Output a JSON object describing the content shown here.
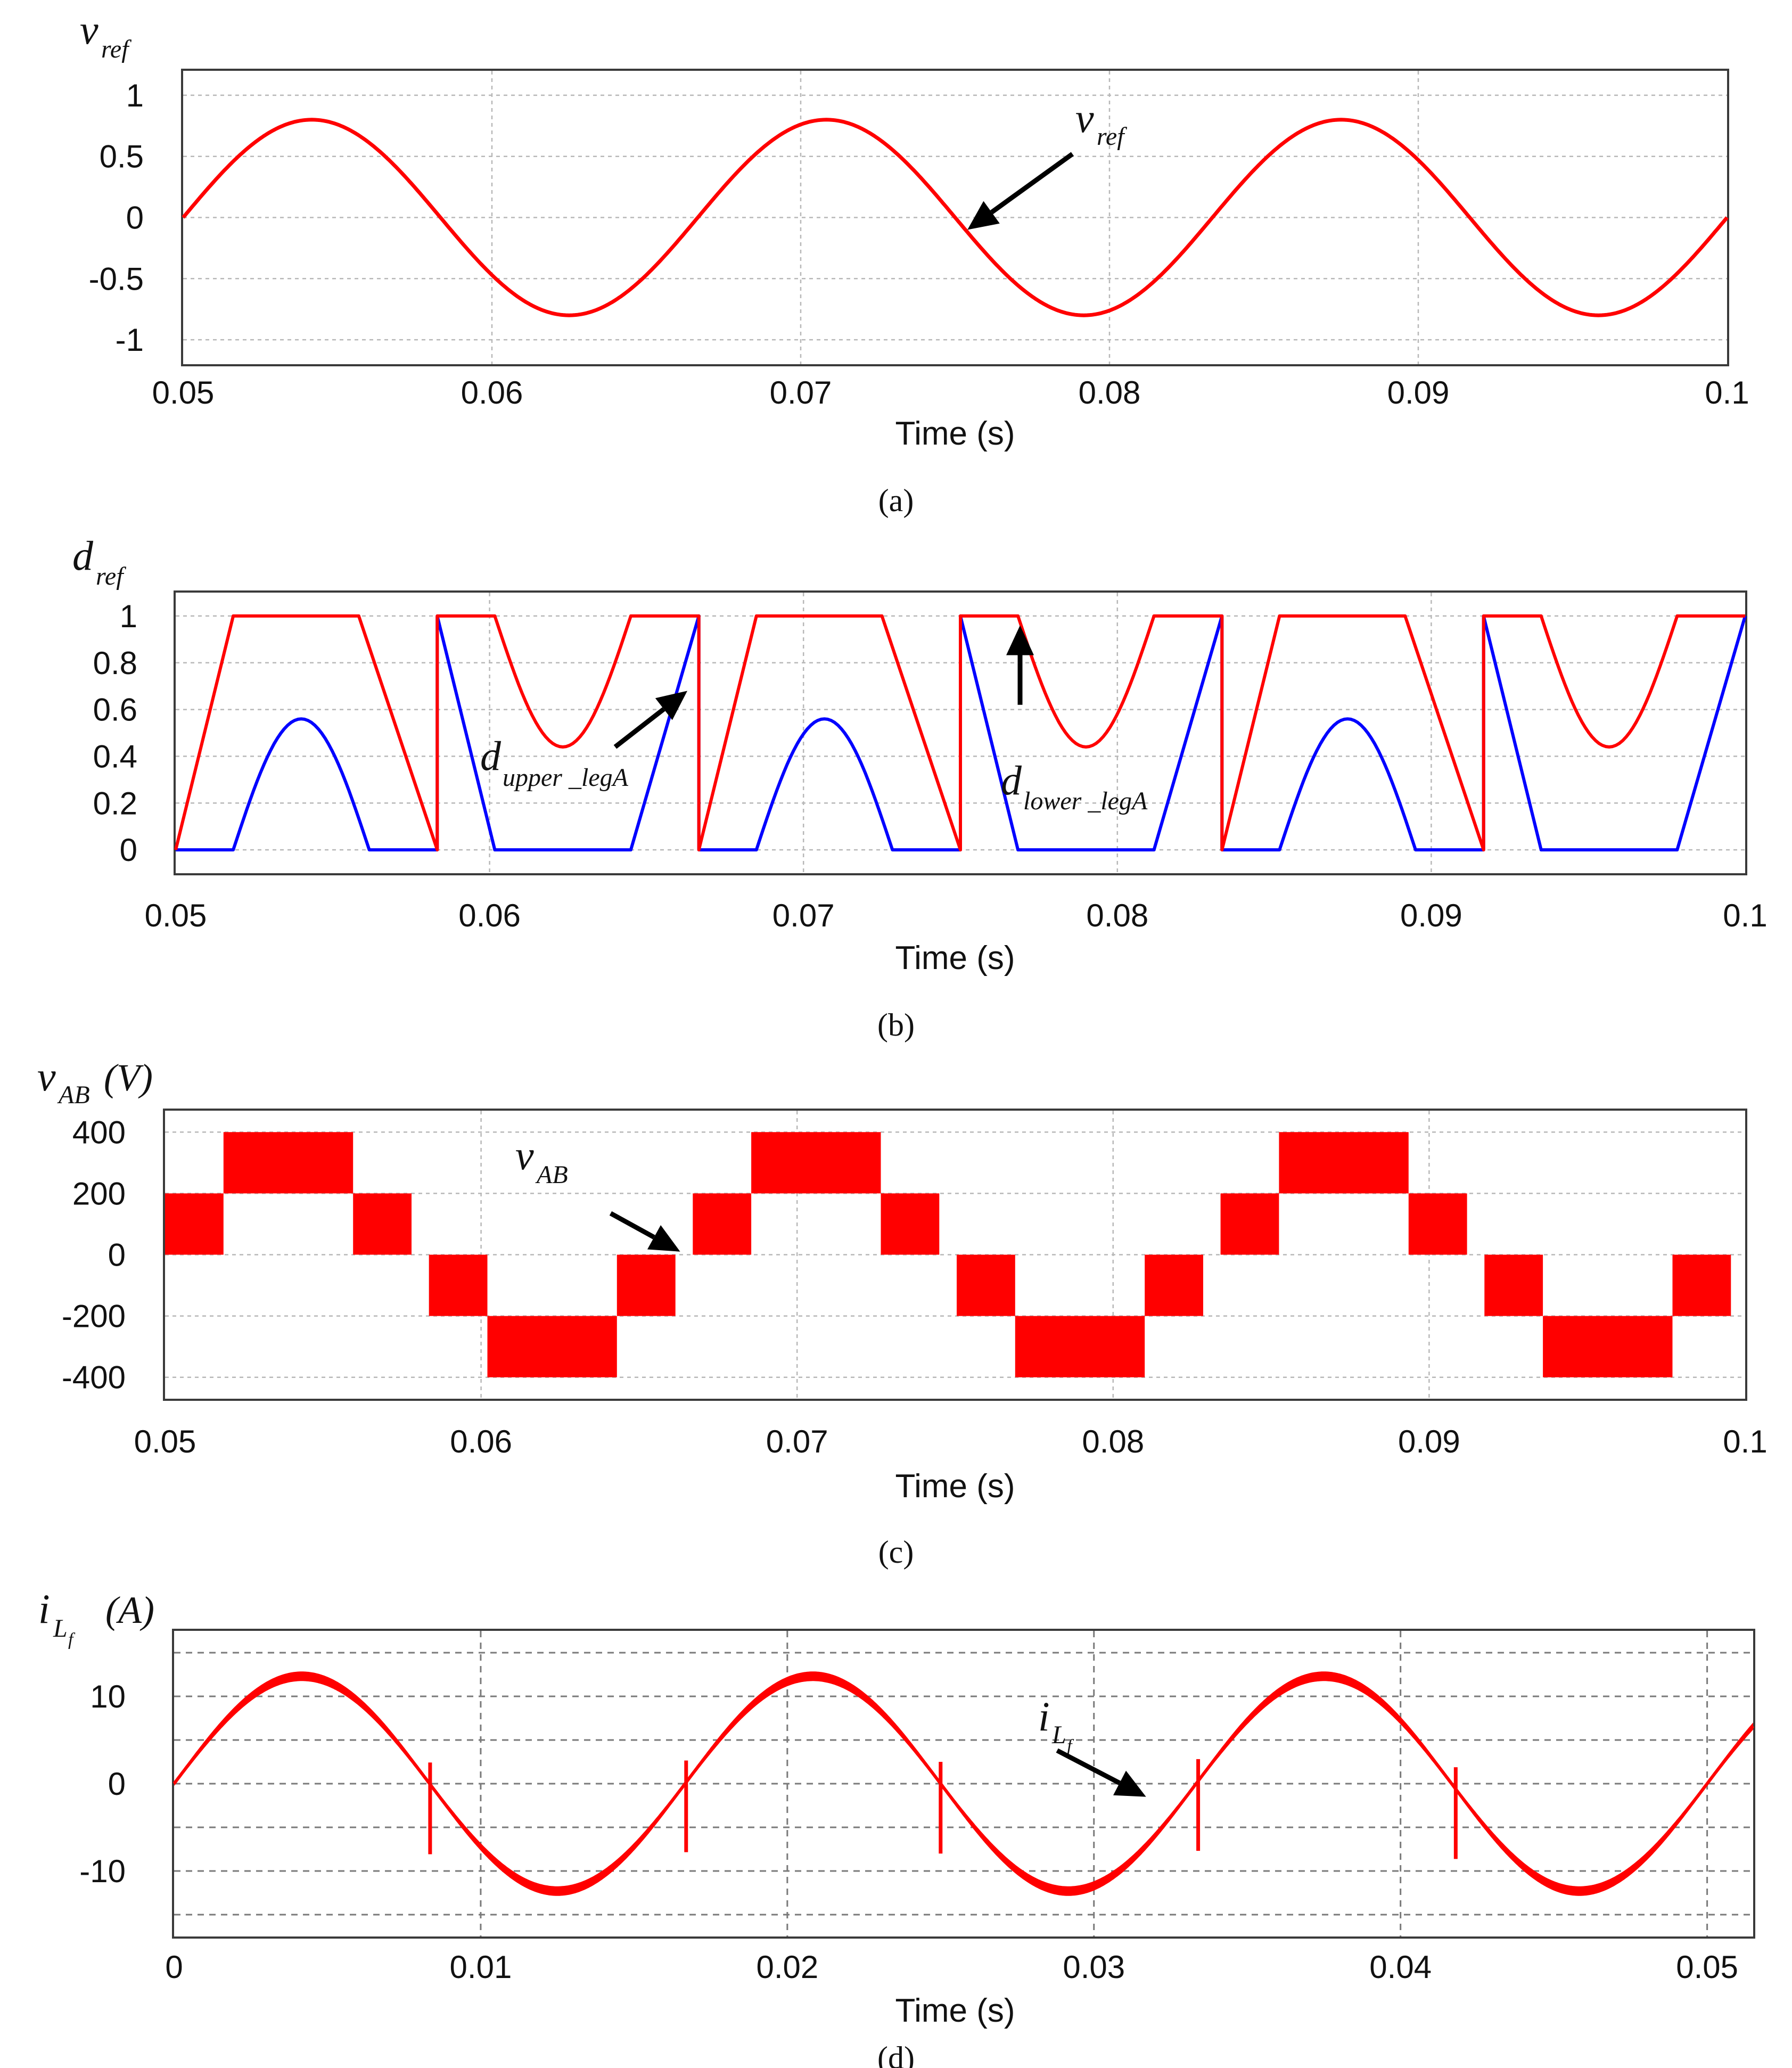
{
  "colors": {
    "red": "#ff0000",
    "blue": "#0000ff"
  },
  "chart_data": [
    {
      "id": "a",
      "type": "line",
      "panel_label": "(a)",
      "ylabel": {
        "main": "v",
        "sub": "ref"
      },
      "xlabel": "Time (s)",
      "xlim": [
        0.05,
        0.1
      ],
      "ylim": [
        -1.2,
        1.2
      ],
      "xticks": [
        0.05,
        0.06,
        0.07,
        0.08,
        0.09,
        0.1
      ],
      "xtick_labels": [
        "0.05",
        "0.06",
        "0.07",
        "0.08",
        "0.09",
        "0.1"
      ],
      "yticks": [
        1,
        0.5,
        0,
        -0.5,
        -1
      ],
      "ytick_labels": [
        "1",
        "0.5",
        "0",
        "-0.5",
        "-1"
      ],
      "series": [
        {
          "name": "v_ref",
          "color": "red",
          "amplitude": 0.8,
          "frequency_hz": 60,
          "start_value": 0
        }
      ],
      "annotation": {
        "main": "v",
        "sub": "ref",
        "arrow_tip": [
          0.0754,
          -0.1
        ],
        "arrow_tail": [
          0.0788,
          0.52
        ]
      }
    },
    {
      "id": "b",
      "type": "line",
      "panel_label": "(b)",
      "ylabel": {
        "main": "d",
        "sub": "ref"
      },
      "xlabel": "Time (s)",
      "xlim": [
        0.05,
        0.1
      ],
      "ylim": [
        -0.1,
        1.1
      ],
      "xticks": [
        0.05,
        0.06,
        0.07,
        0.08,
        0.09,
        0.1
      ],
      "xtick_labels": [
        "0.05",
        "0.06",
        "0.07",
        "0.08",
        "0.09",
        "0.1"
      ],
      "yticks": [
        1,
        0.8,
        0.6,
        0.4,
        0.2,
        0
      ],
      "ytick_labels": [
        "1",
        "0.8",
        "0.6",
        "0.4",
        "0.2",
        "0"
      ],
      "series": [
        {
          "name": "d_lower_legA",
          "color": "red",
          "segment_minimum": 0.44
        },
        {
          "name": "d_upper_legA",
          "color": "blue",
          "segment_peak": 0.56
        }
      ],
      "annotations": [
        {
          "main": "d",
          "sub": "upper _legA",
          "arrow_tip": [
            0.0663,
            0.68
          ],
          "arrow_tail": [
            0.064,
            0.44
          ]
        },
        {
          "main": "d",
          "sub": "lower _legA",
          "arrow_tip": [
            0.0769,
            0.96
          ],
          "arrow_tail": [
            0.0769,
            0.62
          ]
        }
      ]
    },
    {
      "id": "c",
      "type": "area",
      "panel_label": "(c)",
      "ylabel": {
        "main": "v",
        "sub": "AB",
        "unit": "(V)"
      },
      "xlabel": "Time (s)",
      "xlim": [
        0.05,
        0.1
      ],
      "ylim": [
        -470,
        470
      ],
      "xticks": [
        0.05,
        0.06,
        0.07,
        0.08,
        0.09,
        0.1
      ],
      "xtick_labels": [
        "0.05",
        "0.06",
        "0.07",
        "0.08",
        "0.09",
        "0.1"
      ],
      "yticks": [
        400,
        200,
        0,
        -200,
        -400
      ],
      "ytick_labels": [
        "400",
        "200",
        "0",
        "-200",
        "-400"
      ],
      "series": [
        {
          "name": "v_AB",
          "color": "red",
          "levels_v": [
            200,
            400,
            200,
            0,
            -200,
            -400,
            -200,
            0
          ],
          "level_duration_ms": [
            1.85,
            4.1,
            1.85,
            0.55,
            1.85,
            4.1,
            1.85,
            0.55
          ],
          "start_time_s": 0.05
        }
      ],
      "annotation": {
        "main": "v",
        "sub": "AB",
        "arrow_tip": [
          0.0663,
          10
        ],
        "arrow_tail": [
          0.0641,
          135
        ]
      }
    },
    {
      "id": "d",
      "type": "line",
      "panel_label": "(d)",
      "ylabel": {
        "main": "i",
        "sub": "L",
        "subsub": "f",
        "unit": "(A)"
      },
      "xlabel": "Time (s)",
      "xlim": [
        0,
        0.0515
      ],
      "ylim": [
        -17.5,
        17.5
      ],
      "xticks": [
        0,
        0.01,
        0.02,
        0.03,
        0.04,
        0.05
      ],
      "xtick_labels": [
        "0",
        "0.01",
        "0.02",
        "0.03",
        "0.04",
        "0.05"
      ],
      "yticks": [
        10,
        0,
        -10
      ],
      "ytick_labels": [
        "10",
        "0",
        "-10"
      ],
      "minor_gridlines_y": [
        15,
        5,
        -5,
        -15
      ],
      "series": [
        {
          "name": "i_Lf",
          "color": "red",
          "amplitude_a": 12.3,
          "frequency_hz": 60,
          "ripple_band_a": 1.1,
          "spike_times_s": [
            0.00835,
            0.0167,
            0.025,
            0.0334,
            0.0418
          ],
          "spike_depth_a": -8
        }
      ],
      "annotation": {
        "main": "i",
        "sub": "L",
        "subsub": "f",
        "arrow_tip": [
          0.0317,
          -1.5
        ],
        "arrow_tail": [
          0.0288,
          3.8
        ]
      }
    }
  ]
}
